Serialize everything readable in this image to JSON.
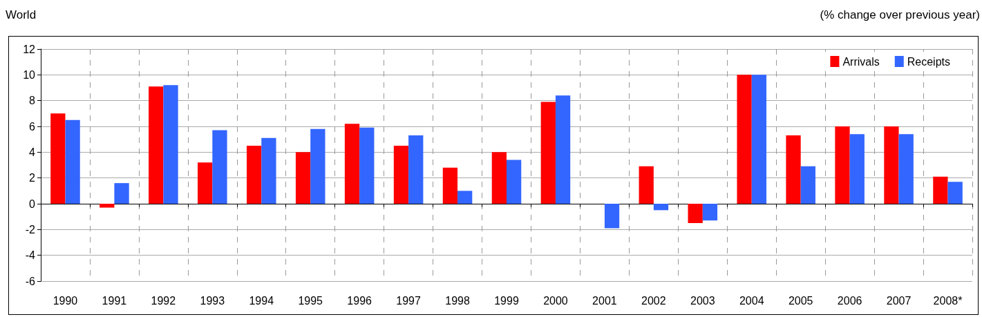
{
  "chart_data": {
    "type": "bar",
    "title": "World",
    "subtitle": "(% change over previous year)",
    "categories": [
      "1990",
      "1991",
      "1992",
      "1993",
      "1994",
      "1995",
      "1996",
      "1997",
      "1998",
      "1999",
      "2000",
      "2001",
      "2002",
      "2003",
      "2004",
      "2005",
      "2006",
      "2007",
      "2008*"
    ],
    "series": [
      {
        "name": "Arrivals",
        "color": "#ff0000",
        "values": [
          7.0,
          -0.3,
          9.1,
          3.2,
          4.5,
          4.0,
          6.2,
          4.5,
          2.8,
          4.0,
          7.9,
          0.0,
          2.9,
          -1.5,
          10.0,
          5.3,
          6.0,
          6.0,
          2.1
        ]
      },
      {
        "name": "Receipts",
        "color": "#3366ff",
        "values": [
          6.5,
          1.6,
          9.2,
          5.7,
          5.1,
          5.8,
          5.9,
          5.3,
          1.0,
          3.4,
          8.4,
          -1.9,
          -0.5,
          -1.3,
          10.0,
          2.9,
          5.4,
          5.4,
          1.7
        ]
      }
    ],
    "ylim": [
      -6,
      12
    ],
    "yticks": [
      -6,
      -4,
      -2,
      0,
      2,
      4,
      6,
      8,
      10,
      12
    ],
    "grid": true,
    "legend": "top right"
  }
}
